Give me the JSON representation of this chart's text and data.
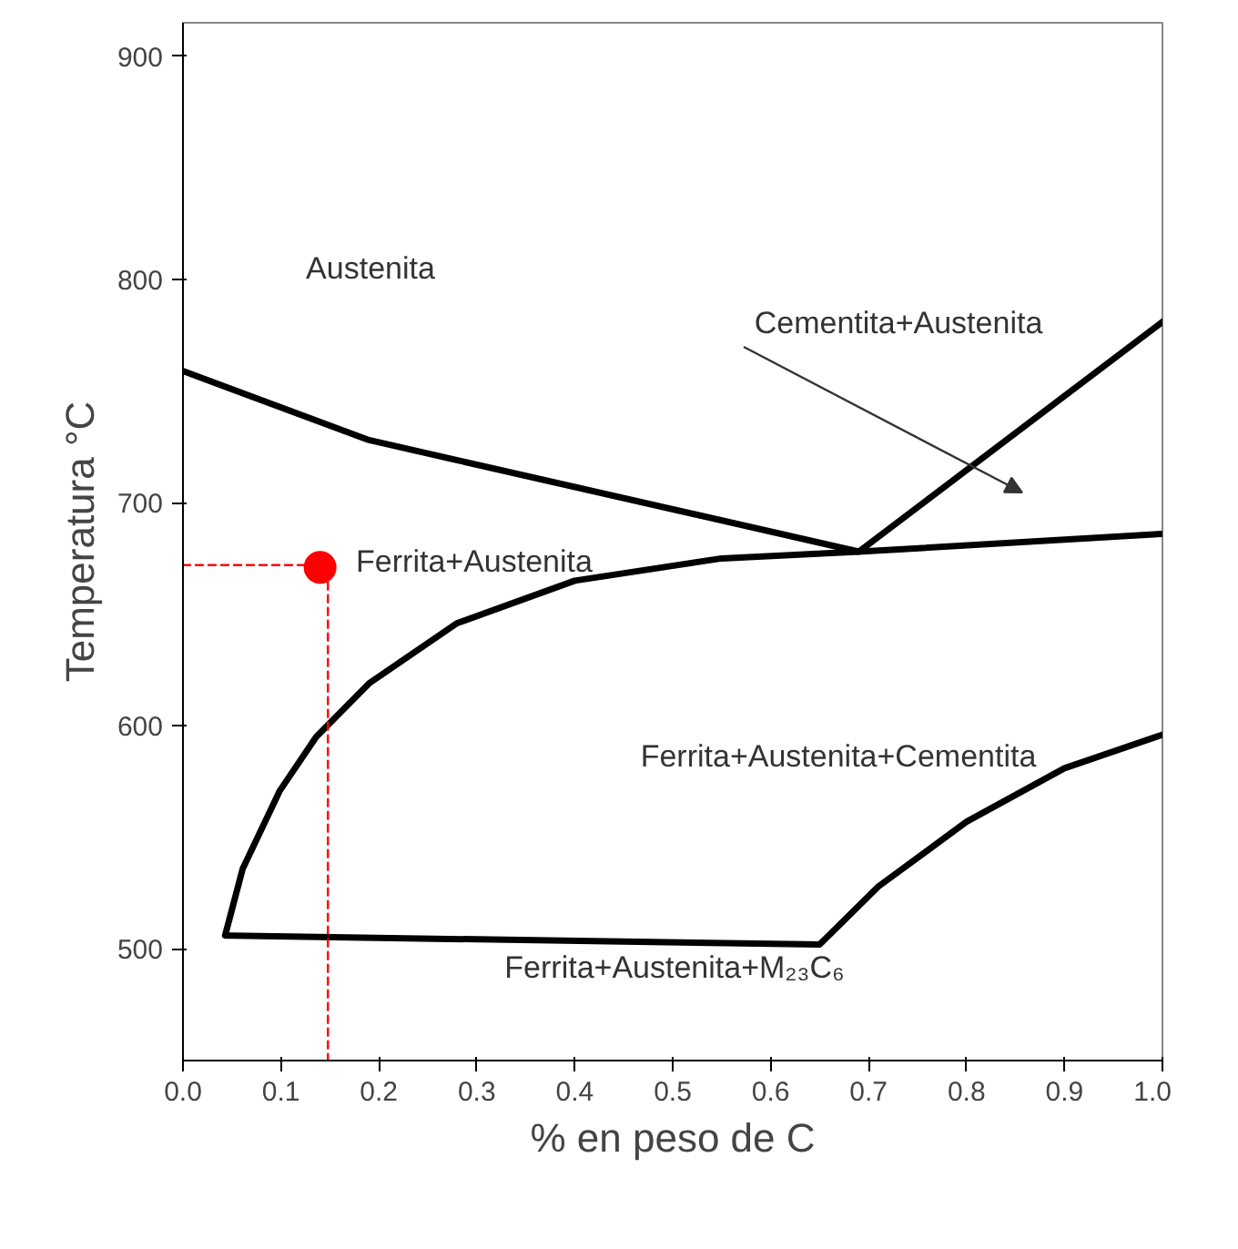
{
  "chart_data": {
    "type": "line",
    "xlabel": "% en peso de C",
    "ylabel": "Temperatura °C",
    "xlim": [
      0,
      1
    ],
    "ylim": [
      450,
      915
    ],
    "xticks": [
      {
        "value": 0,
        "label": "0.0"
      },
      0.1,
      0.2,
      0.3,
      0.4,
      0.5,
      0.6,
      0.7,
      0.8,
      0.9,
      {
        "value": 1,
        "label": "1.0"
      }
    ],
    "yticks": [
      500,
      600,
      700,
      800,
      900
    ],
    "grid": false,
    "series": [
      {
        "color": "#000000",
        "line_style": "solid",
        "x": [
          0,
          0.19,
          0.69,
          1.0
        ],
        "values": [
          759,
          728,
          678,
          781
        ]
      },
      {
        "color": "#000000",
        "line_style": "solid",
        "x": [
          1.0,
          0.69,
          0.55,
          0.4,
          0.28,
          0.19,
          0.136,
          0.099,
          0.061,
          0.043,
          0.65,
          0.71,
          0.8,
          0.9,
          1.0
        ],
        "values": [
          686,
          678,
          675,
          665,
          646,
          619,
          595,
          571,
          536,
          506,
          502,
          528,
          557,
          581,
          596
        ]
      },
      {
        "color": "#ff0000",
        "line_style": "dashed",
        "x": [
          0,
          0.14
        ],
        "values": [
          672,
          672
        ]
      },
      {
        "color": "#ff0000",
        "line_style": "dashed",
        "x": [
          0.148,
          0.148
        ],
        "values": [
          670,
          450
        ]
      },
      {
        "type": "scatter",
        "color": "#ff0000",
        "marker": "circle",
        "x": [
          0.14
        ],
        "values": [
          671
        ]
      }
    ],
    "annotations": [
      "Austenita",
      "Cementita+Austenita",
      "Ferrita+Austenita",
      "Ferrita+Austenita+Cementita",
      "Ferrita+Austenita+M₂₃C₆"
    ]
  }
}
